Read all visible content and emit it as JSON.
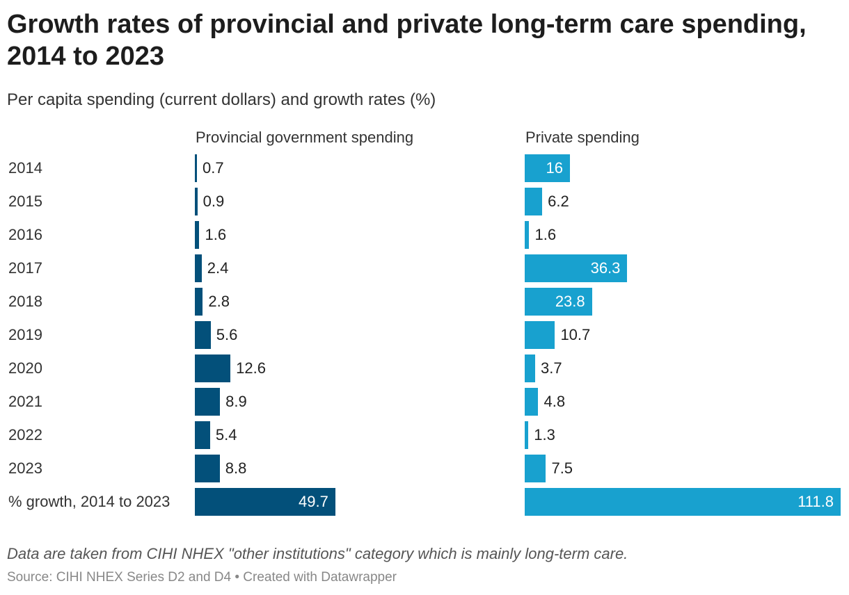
{
  "title": "Growth rates of provincial and private long-term care spending, 2014 to 2023",
  "subtitle": "Per capita spending (current dollars) and growth rates (%)",
  "notes": "Data are taken from CIHI NHEX \"other institutions\" category which is mainly long-term care.",
  "source": "Source: CIHI NHEX Series D2 and D4 • Created with Datawrapper",
  "chart_data": {
    "type": "bar",
    "orientation": "horizontal",
    "categories": [
      "2014",
      "2015",
      "2016",
      "2017",
      "2018",
      "2019",
      "2020",
      "2021",
      "2022",
      "2023",
      "% growth, 2014 to 2023"
    ],
    "series": [
      {
        "name": "Provincial government spending",
        "color": "#03507a",
        "values": [
          0.7,
          0.9,
          1.6,
          2.4,
          2.8,
          5.6,
          12.6,
          8.9,
          5.4,
          8.8,
          49.7
        ]
      },
      {
        "name": "Private spending",
        "color": "#18a1cf",
        "values": [
          16,
          6.2,
          1.6,
          36.3,
          23.8,
          10.7,
          3.7,
          4.8,
          1.3,
          7.5,
          111.8
        ]
      }
    ],
    "xlim": [
      0,
      111.8
    ],
    "grid": false,
    "legend": "none"
  }
}
